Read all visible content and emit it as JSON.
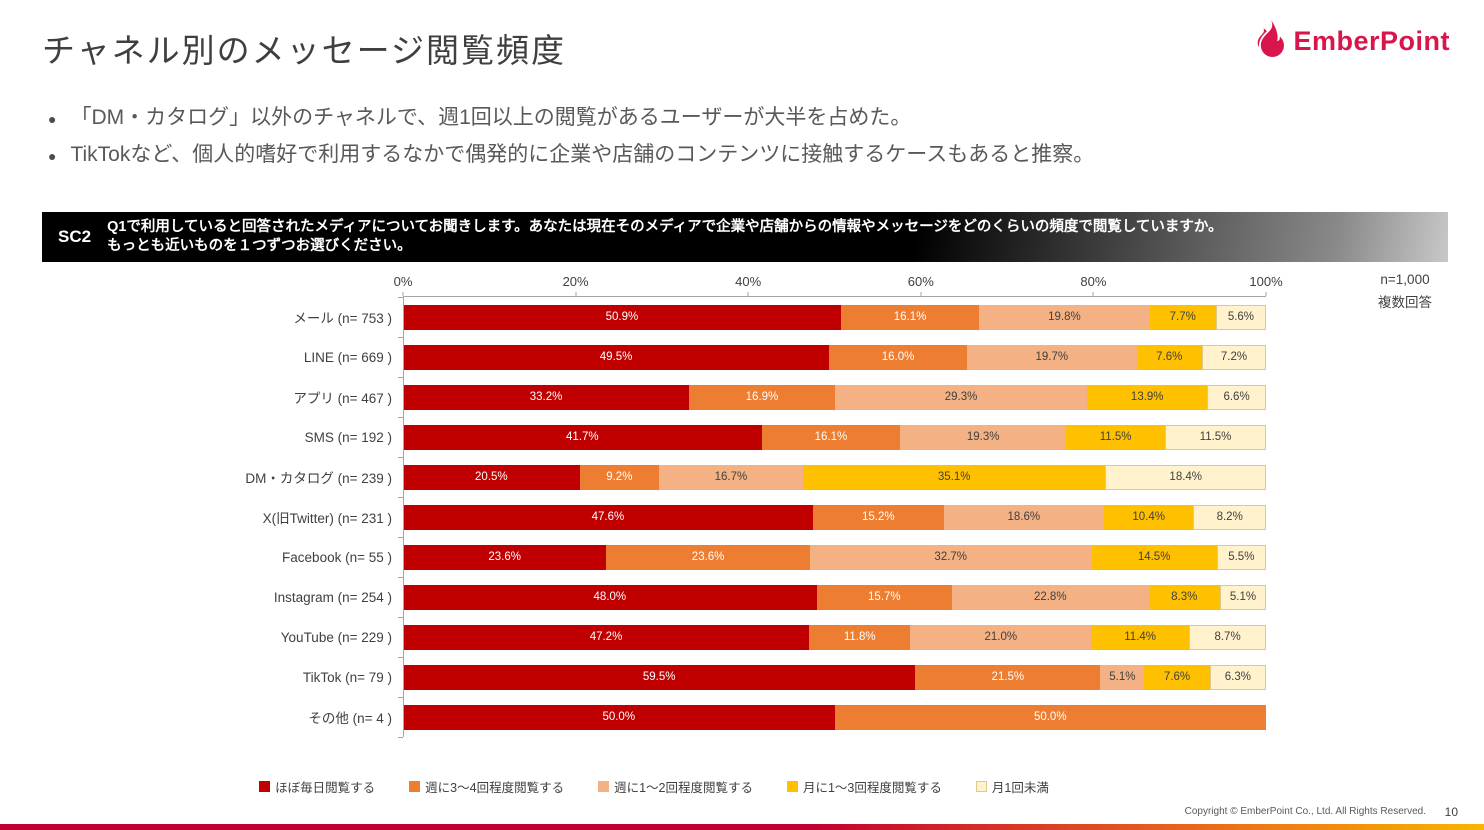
{
  "slide": {
    "title": "チャネル別のメッセージ閲覧頻度",
    "bullets": [
      "「DM・カタログ」以外のチャネルで、週1回以上の閲覧があるユーザーが大半を占めた。",
      "TikTokなど、個人的嗜好で利用するなかで偶発的に企業や店舗のコンテンツに接触するケースもあると推察。"
    ],
    "logo_text": "EmberPoint",
    "copyright": "Copyright © EmberPoint Co., Ltd. All Rights Reserved.",
    "page_number": "10"
  },
  "question": {
    "code": "SC2",
    "line1": "Q1で利用していると回答されたメディアについてお聞きします。あなたは現在そのメディアで企業や店舗からの情報やメッセージをどのくらいの頻度で閲覧していますか。",
    "line2": "もっとも近いものを１つずつお選びください。"
  },
  "sample": {
    "n_label": "n=1,000",
    "answer_type": "複数回答"
  },
  "colors": {
    "brand_crimson": "#d9164b",
    "banner_black": "#000000",
    "footer_gradient": [
      "#c10230",
      "#e8651d",
      "#f8b500"
    ]
  },
  "chart_data": {
    "type": "bar",
    "variant": "horizontal-stacked",
    "title": "",
    "xlabel": "",
    "ylabel": "",
    "xlim": [
      0,
      100
    ],
    "x_ticks": [
      "0%",
      "20%",
      "40%",
      "60%",
      "80%",
      "100%"
    ],
    "grid": false,
    "legend_position": "bottom",
    "value_suffix": "%",
    "categories": [
      "メール (n= 753 )",
      "LINE (n= 669 )",
      "アプリ (n= 467 )",
      "SMS (n= 192 )",
      "DM・カタログ (n= 239 )",
      "X(旧Twitter) (n= 231 )",
      "Facebook (n= 55 )",
      "Instagram (n= 254 )",
      "YouTube (n= 229 )",
      "TikTok (n= 79 )",
      "その他 (n= 4 )"
    ],
    "series": [
      {
        "name": "ほぼ毎日閲覧する",
        "color": "#c00000",
        "label_color": "#ffffff",
        "values": [
          50.9,
          49.5,
          33.2,
          41.7,
          20.5,
          47.6,
          23.6,
          48.0,
          47.2,
          59.5,
          50.0
        ]
      },
      {
        "name": "週に3～4回程度閲覧する",
        "color": "#ed7d31",
        "label_color": "#ffffff",
        "values": [
          16.1,
          16.0,
          16.9,
          16.1,
          9.2,
          15.2,
          23.6,
          15.7,
          11.8,
          21.5,
          50.0
        ]
      },
      {
        "name": "週に1～2回程度閲覧する",
        "color": "#f4b183",
        "label_color": "#404040",
        "values": [
          19.8,
          19.7,
          29.3,
          19.3,
          16.7,
          18.6,
          32.7,
          22.8,
          21.0,
          5.1,
          0
        ]
      },
      {
        "name": "月に1～3回程度閲覧する",
        "color": "#ffc000",
        "label_color": "#404040",
        "values": [
          7.7,
          7.6,
          13.9,
          11.5,
          35.1,
          10.4,
          14.5,
          8.3,
          11.4,
          7.6,
          0
        ]
      },
      {
        "name": "月1回未満",
        "color": "#fff2cc",
        "label_color": "#404040",
        "border": "#ddc98e",
        "values": [
          5.6,
          7.2,
          6.6,
          11.5,
          18.4,
          8.2,
          5.5,
          5.1,
          8.7,
          6.3,
          0
        ]
      }
    ]
  }
}
